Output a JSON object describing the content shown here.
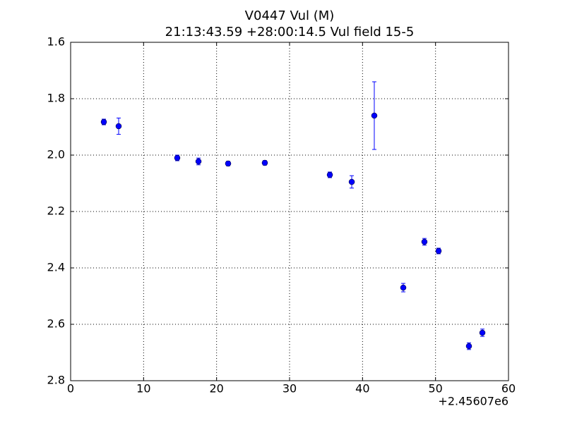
{
  "chart_data": {
    "type": "scatter",
    "title": "V0447 Vul (M)",
    "subtitle": "21:13:43.59 +28:00:14.5 Vul field 15-5",
    "x_offset_label": "+2.45607e6",
    "x": [
      4.55,
      6.58,
      14.61,
      17.52,
      21.58,
      26.61,
      35.52,
      38.52,
      41.61,
      45.58,
      48.48,
      50.42,
      54.58,
      56.42
    ],
    "values": [
      1.8825,
      1.8975,
      2.01,
      2.0225,
      2.03,
      2.0275,
      2.07,
      2.095,
      1.86,
      2.47,
      2.3075,
      2.34,
      2.6775,
      2.63
    ],
    "errors": [
      0.01,
      0.029,
      0.01,
      0.012,
      0.008,
      0.008,
      0.01,
      0.022,
      0.12,
      0.015,
      0.012,
      0.01,
      0.012,
      0.013
    ],
    "color": "#0000ff",
    "xlim": [
      0,
      60
    ],
    "xticks": [
      0,
      10,
      20,
      30,
      40,
      50,
      60
    ],
    "ylim": [
      1.6,
      2.8
    ],
    "invert_y": true,
    "yticks": [
      1.6,
      1.8,
      {
        "value": 2,
        "label": "2.0"
      },
      2.2,
      2.4,
      2.6,
      2.8
    ],
    "grid": true
  }
}
